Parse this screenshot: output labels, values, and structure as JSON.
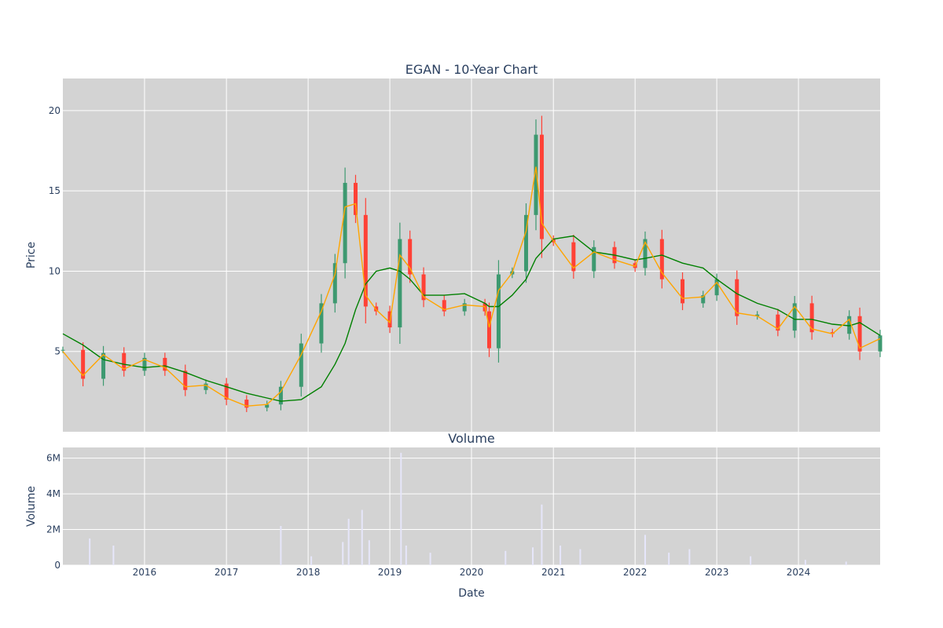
{
  "chart_data": [
    {
      "type": "candlestick",
      "title": "EGAN - 10-Year Chart",
      "ylabel": "Price",
      "x_range": [
        "2015-01-01",
        "2024-12-31"
      ],
      "ylim": [
        0,
        22
      ],
      "yticks": [
        5,
        10,
        15,
        20
      ],
      "grid": true,
      "background": "#d3d3d3",
      "colors": {
        "up": "#3d9970",
        "down": "#ff4136",
        "ma_short": "#ffa500",
        "ma_long": "#008000"
      },
      "price_series": {
        "name": "Close",
        "x": [
          "2015-01-01",
          "2015-04-01",
          "2015-07-01",
          "2015-10-01",
          "2016-01-01",
          "2016-04-01",
          "2016-07-01",
          "2016-10-01",
          "2017-01-01",
          "2017-04-01",
          "2017-07-01",
          "2017-09-01",
          "2017-12-01",
          "2018-03-01",
          "2018-05-01",
          "2018-06-15",
          "2018-08-01",
          "2018-09-15",
          "2018-11-01",
          "2019-01-01",
          "2019-02-15",
          "2019-04-01",
          "2019-06-01",
          "2019-09-01",
          "2019-12-01",
          "2020-03-01",
          "2020-03-20",
          "2020-05-01",
          "2020-07-01",
          "2020-09-01",
          "2020-10-15",
          "2020-11-10",
          "2021-01-01",
          "2021-04-01",
          "2021-07-01",
          "2021-10-01",
          "2022-01-01",
          "2022-02-15",
          "2022-05-01",
          "2022-08-01",
          "2022-11-01",
          "2023-01-01",
          "2023-04-01",
          "2023-07-01",
          "2023-10-01",
          "2023-12-15",
          "2024-03-01",
          "2024-06-01",
          "2024-08-15",
          "2024-10-01",
          "2024-12-31"
        ],
        "y": [
          5.1,
          3.3,
          4.9,
          3.8,
          4.6,
          3.8,
          2.6,
          3.0,
          2.0,
          1.5,
          1.7,
          2.8,
          5.5,
          8.0,
          10.5,
          15.5,
          13.5,
          7.8,
          7.5,
          6.5,
          12.0,
          9.8,
          8.2,
          7.5,
          8.0,
          7.5,
          5.2,
          9.8,
          10.0,
          13.5,
          18.5,
          12.0,
          11.8,
          10.0,
          11.5,
          10.5,
          10.2,
          12.0,
          9.5,
          8.0,
          8.5,
          9.5,
          7.2,
          7.3,
          6.3,
          8.0,
          6.2,
          6.1,
          7.2,
          5.0,
          6.0
        ]
      },
      "ma_short": {
        "x": [
          "2015-01-01",
          "2015-04-01",
          "2015-07-01",
          "2015-10-01",
          "2016-01-01",
          "2016-04-01",
          "2016-07-01",
          "2016-10-01",
          "2017-01-01",
          "2017-04-01",
          "2017-07-01",
          "2017-09-01",
          "2017-12-01",
          "2018-03-01",
          "2018-05-01",
          "2018-06-15",
          "2018-08-01",
          "2018-09-15",
          "2018-11-01",
          "2019-01-01",
          "2019-02-15",
          "2019-04-01",
          "2019-06-01",
          "2019-09-01",
          "2019-12-01",
          "2020-03-01",
          "2020-03-20",
          "2020-05-01",
          "2020-07-01",
          "2020-09-01",
          "2020-10-15",
          "2020-11-10",
          "2021-01-01",
          "2021-04-01",
          "2021-07-01",
          "2021-10-01",
          "2022-01-01",
          "2022-02-15",
          "2022-05-01",
          "2022-08-01",
          "2022-11-01",
          "2023-01-01",
          "2023-04-01",
          "2023-07-01",
          "2023-10-01",
          "2023-12-15",
          "2024-03-01",
          "2024-06-01",
          "2024-08-15",
          "2024-10-01",
          "2024-12-31"
        ],
        "y": [
          5.0,
          3.5,
          4.8,
          3.9,
          4.5,
          4.0,
          2.8,
          2.9,
          2.1,
          1.6,
          1.7,
          2.5,
          4.8,
          7.5,
          9.8,
          14.0,
          14.2,
          8.5,
          7.6,
          6.8,
          11.0,
          10.2,
          8.4,
          7.6,
          7.9,
          7.8,
          6.5,
          8.8,
          9.9,
          12.5,
          16.5,
          13.0,
          11.9,
          10.2,
          11.2,
          10.7,
          10.3,
          11.8,
          9.9,
          8.3,
          8.4,
          9.3,
          7.4,
          7.2,
          6.4,
          7.8,
          6.4,
          6.1,
          7.0,
          5.2,
          5.8
        ]
      },
      "ma_long": {
        "x": [
          "2015-01-01",
          "2015-04-01",
          "2015-07-01",
          "2015-10-01",
          "2016-01-01",
          "2016-04-01",
          "2016-07-01",
          "2016-10-01",
          "2017-01-01",
          "2017-04-01",
          "2017-07-01",
          "2017-09-01",
          "2017-12-01",
          "2018-03-01",
          "2018-05-01",
          "2018-06-15",
          "2018-08-01",
          "2018-09-15",
          "2018-11-01",
          "2019-01-01",
          "2019-02-15",
          "2019-04-01",
          "2019-06-01",
          "2019-09-01",
          "2019-12-01",
          "2020-03-01",
          "2020-03-20",
          "2020-05-01",
          "2020-07-01",
          "2020-09-01",
          "2020-10-15",
          "2020-11-10",
          "2021-01-01",
          "2021-04-01",
          "2021-07-01",
          "2021-10-01",
          "2022-01-01",
          "2022-02-15",
          "2022-05-01",
          "2022-08-01",
          "2022-11-01",
          "2023-01-01",
          "2023-04-01",
          "2023-07-01",
          "2023-10-01",
          "2023-12-15",
          "2024-03-01",
          "2024-06-01",
          "2024-08-15",
          "2024-10-01",
          "2024-12-31"
        ],
        "y": [
          6.1,
          5.4,
          4.5,
          4.2,
          4.0,
          4.1,
          3.7,
          3.2,
          2.8,
          2.4,
          2.1,
          1.9,
          2.0,
          2.8,
          4.2,
          5.5,
          7.6,
          9.2,
          10.0,
          10.2,
          10.0,
          9.5,
          8.5,
          8.5,
          8.6,
          8.0,
          7.8,
          7.8,
          8.5,
          9.5,
          10.8,
          11.2,
          12.0,
          12.2,
          11.2,
          11.0,
          10.7,
          10.8,
          11.0,
          10.5,
          10.2,
          9.5,
          8.6,
          8.0,
          7.6,
          7.0,
          7.0,
          6.7,
          6.6,
          6.8,
          6.0
        ]
      }
    },
    {
      "type": "bar",
      "title": "Volume",
      "xlabel": "Date",
      "ylabel": "Volume",
      "x_range": [
        "2015-01-01",
        "2024-12-31"
      ],
      "ylim": [
        0,
        6600000
      ],
      "yticks": [
        0,
        2000000,
        4000000,
        6000000
      ],
      "ytick_labels": [
        "0",
        "2M",
        "4M",
        "6M"
      ],
      "xticks": [
        "2016",
        "2017",
        "2018",
        "2019",
        "2020",
        "2021",
        "2022",
        "2023",
        "2024"
      ],
      "grid": true,
      "background": "#d3d3d3",
      "colors": {
        "bar": "#e6e6fa"
      },
      "x": [
        "2015-05-01",
        "2015-08-15",
        "2017-09-01",
        "2018-01-15",
        "2018-06-05",
        "2018-07-01",
        "2018-08-30",
        "2018-10-01",
        "2019-02-20",
        "2019-03-15",
        "2019-07-01",
        "2020-06-01",
        "2020-10-01",
        "2020-11-10",
        "2021-02-01",
        "2021-05-01",
        "2022-02-15",
        "2022-06-01",
        "2022-09-01",
        "2023-06-01",
        "2024-02-01",
        "2024-08-01"
      ],
      "values": [
        1500000,
        1100000,
        2200000,
        500000,
        1300000,
        2600000,
        3100000,
        1400000,
        6300000,
        1100000,
        700000,
        800000,
        1000000,
        3400000,
        1100000,
        900000,
        1700000,
        700000,
        900000,
        500000,
        300000,
        200000
      ]
    }
  ]
}
